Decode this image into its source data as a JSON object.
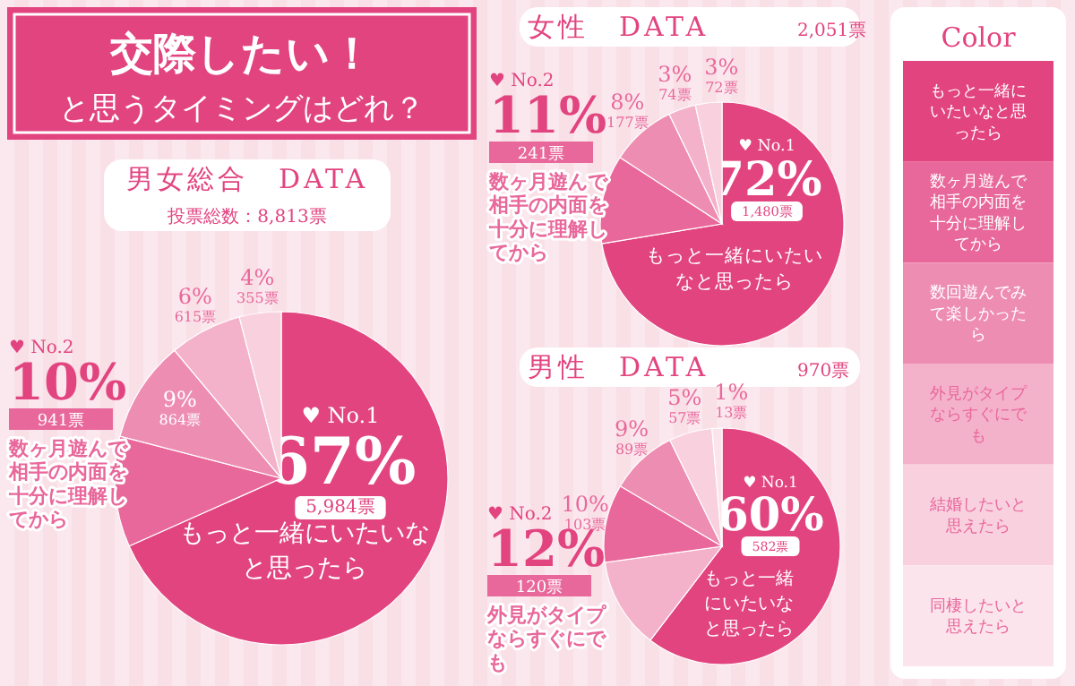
{
  "chart_data": [
    {
      "type": "other",
      "title": "交際したい！",
      "subtitle": "と思うタイミングはどれ？"
    },
    {
      "type": "pie",
      "title": "男女総合　DATA",
      "subtitle": "投票総数：8,813票",
      "annotations": [
        "♥ No.1",
        "♥ No.2"
      ],
      "categories": [
        "もっと一緒にいたいなと思ったら",
        "数ヶ月遊んで相手の内面を十分に理解してから",
        null,
        null,
        null
      ],
      "values": [
        5984,
        941,
        864,
        615,
        355
      ],
      "value_labels": [
        "67%\n5,984票",
        "10%\n941票",
        "9%\n864票",
        "6%\n615票",
        "4%\n355票"
      ],
      "colors": [
        "#e2447f",
        "#e9689b",
        "#ee8db2",
        "#f4b1ca",
        "#f8d0de"
      ]
    },
    {
      "type": "pie",
      "title": "女性　DATA",
      "subtitle": "2,051票",
      "annotations": [
        "♥ No.1",
        "♥ No.2"
      ],
      "categories": [
        "もっと一緒にいたいなと思ったら",
        "数ヶ月遊んで相手の内面を十分に理解してから",
        null,
        null,
        null
      ],
      "values": [
        1480,
        241,
        177,
        74,
        72
      ],
      "value_labels": [
        "72%\n1,480票",
        "11%\n241票",
        "8%\n177票",
        "3%\n74票",
        "3%\n72票"
      ],
      "colors": [
        "#e2447f",
        "#e9689b",
        "#ee8db2",
        "#f4b1ca",
        "#f8d0de"
      ]
    },
    {
      "type": "pie",
      "title": "男性　DATA",
      "subtitle": "970票",
      "annotations": [
        "♥ No.1",
        "♥ No.2"
      ],
      "categories": [
        "もっと一緒にいたいなと思ったら",
        "外見がタイプならすぐにでも",
        null,
        null,
        null,
        null
      ],
      "values": [
        582,
        120,
        103,
        89,
        57,
        13
      ],
      "value_labels": [
        "60%\n582票",
        "12%\n120票",
        "10%\n103票",
        "9%\n89票",
        "5%\n57票",
        "1%\n13票"
      ],
      "colors": [
        "#e2447f",
        "#f4b1ca",
        "#e9689b",
        "#ee8db2",
        "#f8d0de",
        "#fbe4ec"
      ]
    },
    {
      "type": "other",
      "title": "Color",
      "categories": [
        "もっと一緒にいたいなと思ったら",
        "数ヶ月遊んで相手の内面を十分に理解してから",
        "数回遊んでみて楽しかったら",
        "外見がタイプならすぐにでも",
        "結婚したいと思えたら",
        "同棲したいと思えたら"
      ],
      "colors": [
        "#e2447f",
        "#e9689b",
        "#ee8db2",
        "#f4b1ca",
        "#f8d0de",
        "#fbe4ec"
      ]
    }
  ]
}
